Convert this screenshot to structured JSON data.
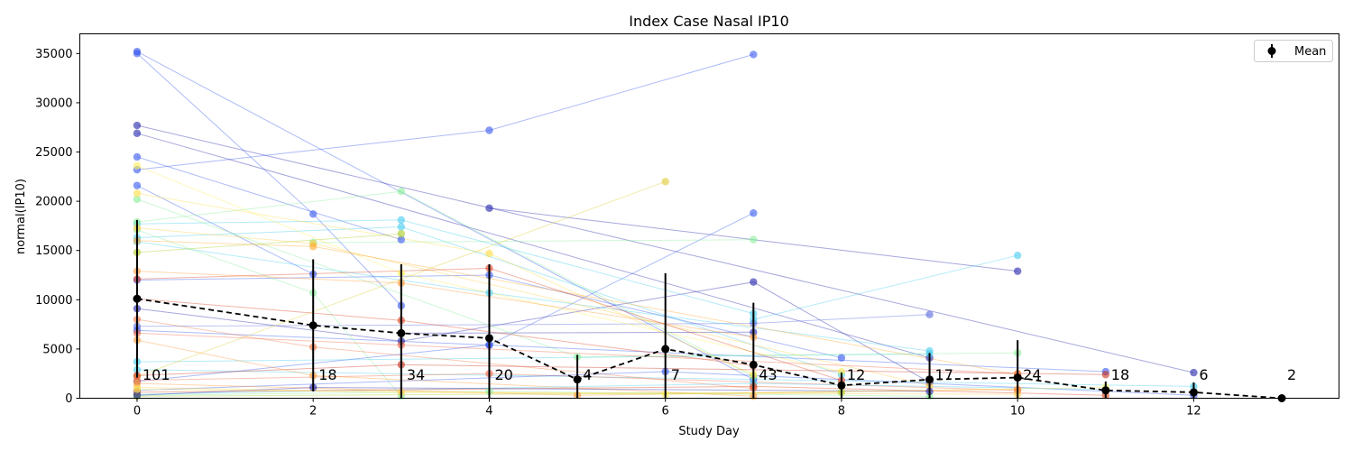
{
  "chart_data": {
    "type": "line",
    "title": "Index Case Nasal IP10",
    "xlabel": "Study Day",
    "ylabel": "normal(IP10)",
    "xlim": [
      -0.65,
      13.65
    ],
    "ylim": [
      0,
      37000
    ],
    "xticks": [
      0,
      2,
      4,
      6,
      8,
      10,
      12
    ],
    "yticks": [
      0,
      5000,
      10000,
      15000,
      20000,
      25000,
      30000,
      35000
    ],
    "grid": false,
    "legend": {
      "placement": "top-right",
      "entries": [
        {
          "label": "Mean",
          "color": "#000000"
        }
      ]
    },
    "mean": {
      "name": "Mean",
      "x": [
        0,
        2,
        3,
        4,
        5,
        6,
        7,
        8,
        9,
        10,
        11,
        12,
        13
      ],
      "y": [
        10100,
        7400,
        6600,
        6100,
        1900,
        5000,
        3400,
        1300,
        1900,
        2100,
        800,
        600,
        0
      ],
      "err": [
        8000,
        6700,
        7000,
        7500,
        2500,
        7700,
        6300,
        1300,
        2700,
        3800,
        900,
        1000,
        0
      ],
      "n": [
        101,
        18,
        34,
        20,
        4,
        7,
        43,
        12,
        17,
        24,
        18,
        6,
        2
      ]
    },
    "subjects": [
      {
        "color": "#3355ee",
        "x": [
          0,
          7
        ],
        "y": [
          35200,
          1900
        ]
      },
      {
        "color": "#3355ee",
        "x": [
          0,
          2,
          3
        ],
        "y": [
          35000,
          18700,
          9400
        ]
      },
      {
        "color": "#2222aa",
        "x": [
          0,
          12
        ],
        "y": [
          27700,
          2600
        ]
      },
      {
        "color": "#2222aa",
        "x": [
          0,
          9
        ],
        "y": [
          26900,
          4100
        ]
      },
      {
        "color": "#3355ee",
        "x": [
          0,
          4,
          7
        ],
        "y": [
          23200,
          27200,
          34900
        ]
      },
      {
        "color": "#2222aa",
        "x": [
          4,
          10
        ],
        "y": [
          19300,
          12900
        ]
      },
      {
        "color": "#3355ee",
        "x": [
          0,
          3
        ],
        "y": [
          24500,
          16100
        ]
      },
      {
        "color": "#3355ee",
        "x": [
          0,
          2
        ],
        "y": [
          21600,
          12600
        ]
      },
      {
        "color": "#3355ee",
        "x": [
          0,
          4,
          7
        ],
        "y": [
          1700,
          5400,
          18800
        ]
      },
      {
        "color": "#2222aa",
        "x": [
          0,
          3,
          7,
          9
        ],
        "y": [
          9100,
          5800,
          11800,
          1600
        ]
      },
      {
        "color": "#5566dd",
        "x": [
          0,
          7,
          9
        ],
        "y": [
          7300,
          7600,
          8500
        ]
      },
      {
        "color": "#3355ee",
        "x": [
          0,
          4,
          8
        ],
        "y": [
          12000,
          12500,
          4100
        ]
      },
      {
        "color": "#3355ee",
        "x": [
          0,
          4,
          11
        ],
        "y": [
          6900,
          5400,
          2700
        ]
      },
      {
        "color": "#2222aa",
        "x": [
          3,
          7
        ],
        "y": [
          6600,
          6700
        ]
      },
      {
        "color": "#44ccee",
        "x": [
          0,
          3,
          7
        ],
        "y": [
          17700,
          18100,
          8600
        ]
      },
      {
        "color": "#44ccee",
        "x": [
          0,
          3,
          8
        ],
        "y": [
          16300,
          17400,
          2400
        ]
      },
      {
        "color": "#44ccee",
        "x": [
          0,
          4,
          9
        ],
        "y": [
          15900,
          10700,
          4800
        ]
      },
      {
        "color": "#44ccee",
        "x": [
          7,
          10
        ],
        "y": [
          8000,
          14500
        ]
      },
      {
        "color": "#44ccee",
        "x": [
          0,
          9
        ],
        "y": [
          3700,
          4500
        ]
      },
      {
        "color": "#44ccee",
        "x": [
          0,
          12
        ],
        "y": [
          2900,
          1200
        ]
      },
      {
        "color": "#88ee99",
        "x": [
          0,
          3,
          7
        ],
        "y": [
          17900,
          21000,
          2200
        ]
      },
      {
        "color": "#88ee99",
        "x": [
          2,
          7
        ],
        "y": [
          15800,
          16100
        ]
      },
      {
        "color": "#88ee99",
        "x": [
          0,
          5,
          10
        ],
        "y": [
          20200,
          4200,
          4600
        ]
      },
      {
        "color": "#88ee99",
        "x": [
          0,
          2,
          3
        ],
        "y": [
          17100,
          10700,
          200
        ]
      },
      {
        "color": "#ddcc33",
        "x": [
          0,
          6
        ],
        "y": [
          2200,
          22000
        ]
      },
      {
        "color": "#ffee55",
        "x": [
          0,
          3,
          8
        ],
        "y": [
          23600,
          12700,
          2700
        ]
      },
      {
        "color": "#ffdd44",
        "x": [
          0,
          4,
          7
        ],
        "y": [
          20800,
          14700,
          2400
        ]
      },
      {
        "color": "#ffcc44",
        "x": [
          0,
          2,
          9
        ],
        "y": [
          17300,
          15700,
          1300
        ]
      },
      {
        "color": "#aacc22",
        "x": [
          0,
          3
        ],
        "y": [
          14800,
          16700
        ]
      },
      {
        "color": "#ffaa33",
        "x": [
          0,
          2,
          10
        ],
        "y": [
          16000,
          15400,
          2400
        ]
      },
      {
        "color": "#ff9933",
        "x": [
          0,
          3,
          7
        ],
        "y": [
          12900,
          11700,
          6200
        ]
      },
      {
        "color": "#dd4422",
        "x": [
          0,
          4,
          8
        ],
        "y": [
          12100,
          13200,
          1800
        ]
      },
      {
        "color": "#dd4422",
        "x": [
          0,
          3,
          7
        ],
        "y": [
          10100,
          7900,
          3300
        ]
      },
      {
        "color": "#ee6644",
        "x": [
          0,
          3,
          10
        ],
        "y": [
          6600,
          5400,
          2500
        ]
      },
      {
        "color": "#ee7744",
        "x": [
          0,
          2,
          7
        ],
        "y": [
          8000,
          5200,
          1000
        ]
      },
      {
        "color": "#cc3322",
        "x": [
          0,
          3,
          11
        ],
        "y": [
          2300,
          3400,
          2400
        ]
      },
      {
        "color": "#ee6644",
        "x": [
          0,
          4,
          10
        ],
        "y": [
          1800,
          2500,
          800
        ]
      },
      {
        "color": "#ff9933",
        "x": [
          0,
          2,
          7
        ],
        "y": [
          5900,
          2300,
          200
        ]
      },
      {
        "color": "#3355ee",
        "x": [
          0,
          6,
          12
        ],
        "y": [
          800,
          2700,
          300
        ]
      },
      {
        "color": "#44ccee",
        "x": [
          0,
          7,
          11
        ],
        "y": [
          400,
          1500,
          900
        ]
      },
      {
        "color": "#88ee99",
        "x": [
          0,
          4,
          9
        ],
        "y": [
          300,
          700,
          200
        ]
      },
      {
        "color": "#ffcc44",
        "x": [
          0,
          3,
          10
        ],
        "y": [
          1100,
          600,
          400
        ]
      },
      {
        "color": "#dd4422",
        "x": [
          0,
          7,
          11
        ],
        "y": [
          600,
          1200,
          300
        ]
      },
      {
        "color": "#aacc22",
        "x": [
          0,
          8
        ],
        "y": [
          200,
          600
        ]
      },
      {
        "color": "#ff9933",
        "x": [
          0,
          5,
          10
        ],
        "y": [
          1500,
          300,
          900
        ]
      },
      {
        "color": "#2222aa",
        "x": [
          0,
          2,
          9
        ],
        "y": [
          300,
          1100,
          700
        ]
      },
      {
        "color": "#ffee55",
        "x": [
          0,
          6,
          11
        ],
        "y": [
          900,
          400,
          1100
        ]
      }
    ]
  }
}
